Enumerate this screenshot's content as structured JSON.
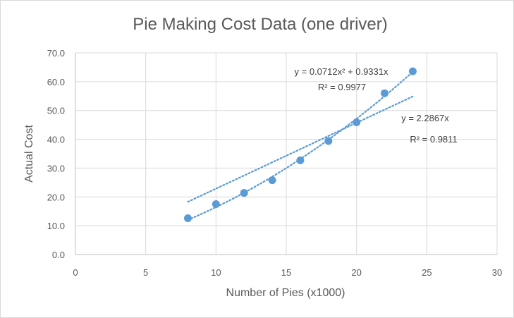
{
  "chart_data": {
    "type": "scatter",
    "title": "Pie Making Cost Data (one driver)",
    "xlabel": "Number of Pies (x1000)",
    "ylabel": "Actual Cost",
    "xlim": [
      0,
      30
    ],
    "ylim": [
      0,
      70
    ],
    "x_ticks": [
      "0",
      "5",
      "10",
      "15",
      "20",
      "25",
      "30"
    ],
    "y_ticks": [
      "0.0",
      "10.0",
      "20.0",
      "30.0",
      "40.0",
      "50.0",
      "60.0",
      "70.0"
    ],
    "grid": true,
    "legend": "none",
    "colors": {
      "points": "#5b9bd5",
      "trendline": "#5b9bd5",
      "grid": "#d9d9d9",
      "axis": "#bfbfbf"
    },
    "series": [
      {
        "x": [
          8,
          10,
          12,
          14,
          16,
          18,
          20,
          22,
          24
        ],
        "y": [
          12.6,
          17.5,
          21.4,
          25.8,
          32.7,
          39.4,
          45.9,
          56.0,
          63.6
        ]
      }
    ],
    "trendlines": [
      {
        "type": "polynomial",
        "coefficients": {
          "a": 0.0712,
          "b": 0.9331
        },
        "x_range": [
          8,
          24
        ],
        "equation": "y = 0.0712x² + 0.9331x",
        "r_squared": "R² = 0.9977"
      },
      {
        "type": "linear",
        "coefficients": {
          "slope": 2.2867
        },
        "x_range": [
          8,
          24
        ],
        "equation": "y = 2.2867x",
        "r_squared": "R² = 0.9811"
      }
    ]
  }
}
